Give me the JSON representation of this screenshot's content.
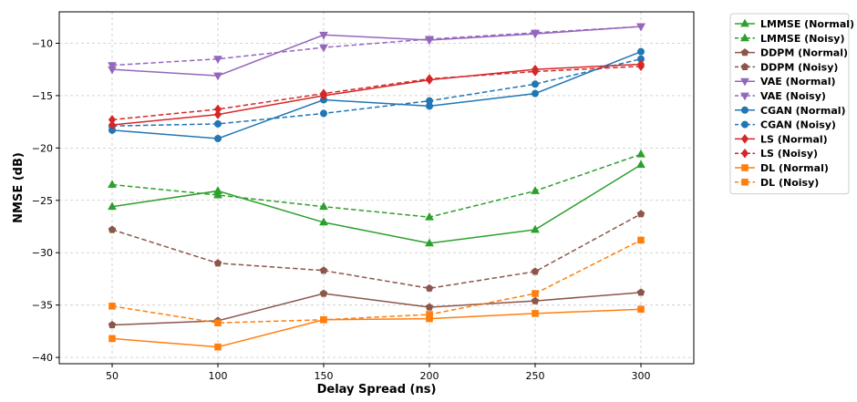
{
  "chart_data": {
    "type": "line",
    "xlabel": "Delay Spread (ns)",
    "ylabel": "NMSE (dB)",
    "x": [
      50,
      100,
      150,
      200,
      250,
      300
    ],
    "xlim": [
      25,
      325
    ],
    "ylim": [
      -40.6,
      -7
    ],
    "xticks": [
      50,
      100,
      150,
      200,
      250,
      300
    ],
    "yticks": [
      -40,
      -35,
      -30,
      -25,
      -20,
      -15,
      -10
    ],
    "grid": true,
    "legend_position": "outside-right-top",
    "series": [
      {
        "name": "LMMSE (Normal)",
        "color": "#2ca02c",
        "dash": "solid",
        "marker": "triangle-up",
        "values": [
          -25.6,
          -24.1,
          -27.1,
          -29.1,
          -27.8,
          -21.6
        ]
      },
      {
        "name": "LMMSE (Noisy)",
        "color": "#2ca02c",
        "dash": "dashed",
        "marker": "triangle-up",
        "values": [
          -23.5,
          -24.5,
          -25.6,
          -26.6,
          -24.1,
          -20.6
        ]
      },
      {
        "name": "DDPM (Normal)",
        "color": "#8c564b",
        "dash": "solid",
        "marker": "pentagon",
        "values": [
          -36.9,
          -36.5,
          -33.9,
          -35.2,
          -34.6,
          -33.8
        ]
      },
      {
        "name": "DDPM (Noisy)",
        "color": "#8c564b",
        "dash": "dashed",
        "marker": "pentagon",
        "values": [
          -27.8,
          -31.0,
          -31.7,
          -33.4,
          -31.8,
          -26.3
        ]
      },
      {
        "name": "VAE (Normal)",
        "color": "#9467bd",
        "dash": "solid",
        "marker": "triangle-down",
        "values": [
          -12.5,
          -13.1,
          -9.2,
          -9.7,
          -9.1,
          -8.4
        ]
      },
      {
        "name": "VAE (Noisy)",
        "color": "#9467bd",
        "dash": "dashed",
        "marker": "triangle-down",
        "values": [
          -12.1,
          -11.5,
          -10.4,
          -9.6,
          -9.0,
          -8.4
        ]
      },
      {
        "name": "CGAN (Normal)",
        "color": "#1f77b4",
        "dash": "solid",
        "marker": "circle",
        "values": [
          -18.3,
          -19.1,
          -15.4,
          -16.0,
          -14.8,
          -10.8
        ]
      },
      {
        "name": "CGAN (Noisy)",
        "color": "#1f77b4",
        "dash": "dashed",
        "marker": "circle",
        "values": [
          -17.9,
          -17.7,
          -16.7,
          -15.5,
          -13.9,
          -11.5
        ]
      },
      {
        "name": "LS (Normal)",
        "color": "#d62728",
        "dash": "solid",
        "marker": "diamond",
        "values": [
          -17.8,
          -16.8,
          -15.0,
          -13.5,
          -12.5,
          -12.0
        ]
      },
      {
        "name": "LS (Noisy)",
        "color": "#d62728",
        "dash": "dashed",
        "marker": "diamond",
        "values": [
          -17.3,
          -16.3,
          -14.8,
          -13.4,
          -12.7,
          -12.2
        ]
      },
      {
        "name": "DL (Normal)",
        "color": "#ff7f0e",
        "dash": "solid",
        "marker": "square",
        "values": [
          -38.2,
          -39.0,
          -36.4,
          -36.3,
          -35.8,
          -35.4
        ]
      },
      {
        "name": "DL (Noisy)",
        "color": "#ff7f0e",
        "dash": "dashed",
        "marker": "square",
        "values": [
          -35.1,
          -36.7,
          -36.4,
          -35.9,
          -33.9,
          -28.8
        ]
      }
    ]
  }
}
